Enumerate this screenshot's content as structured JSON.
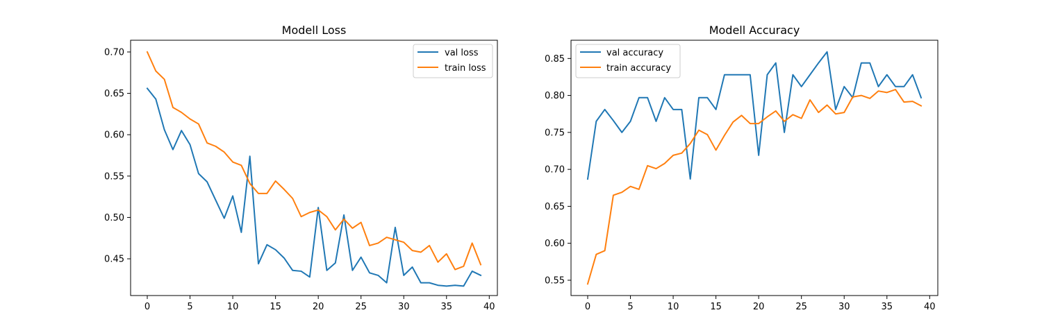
{
  "chart_data": [
    {
      "type": "line",
      "title": "Modell Loss",
      "xlabel": "",
      "ylabel": "",
      "xlim": [
        -1.95,
        40.95
      ],
      "ylim": [
        0.4056,
        0.7142
      ],
      "xticks": [
        0,
        5,
        10,
        15,
        20,
        25,
        30,
        35,
        40
      ],
      "yticks": [
        0.45,
        0.5,
        0.55,
        0.6,
        0.65,
        0.7
      ],
      "ytick_labels": [
        "0.45",
        "0.50",
        "0.55",
        "0.60",
        "0.65",
        "0.70"
      ],
      "legend_position": "upper-right",
      "grid": false,
      "series": [
        {
          "name": "val loss",
          "color": "#1f77b4",
          "x": [
            0,
            1,
            2,
            3,
            4,
            5,
            6,
            7,
            8,
            9,
            10,
            11,
            12,
            13,
            14,
            15,
            16,
            17,
            18,
            19,
            20,
            21,
            22,
            23,
            24,
            25,
            26,
            27,
            28,
            29,
            30,
            31,
            32,
            33,
            34,
            35,
            36,
            37,
            38,
            39
          ],
          "values": [
            0.656,
            0.643,
            0.606,
            0.582,
            0.605,
            0.588,
            0.553,
            0.543,
            0.521,
            0.499,
            0.526,
            0.482,
            0.574,
            0.444,
            0.467,
            0.461,
            0.451,
            0.436,
            0.435,
            0.428,
            0.512,
            0.436,
            0.445,
            0.503,
            0.436,
            0.452,
            0.433,
            0.43,
            0.421,
            0.488,
            0.43,
            0.44,
            0.421,
            0.421,
            0.418,
            0.417,
            0.418,
            0.417,
            0.435,
            0.43
          ]
        },
        {
          "name": "train loss",
          "color": "#ff7f0e",
          "x": [
            0,
            1,
            2,
            3,
            4,
            5,
            6,
            7,
            8,
            9,
            10,
            11,
            12,
            13,
            14,
            15,
            16,
            17,
            18,
            19,
            20,
            21,
            22,
            23,
            24,
            25,
            26,
            27,
            28,
            29,
            30,
            31,
            32,
            33,
            34,
            35,
            36,
            37,
            38,
            39
          ],
          "values": [
            0.7,
            0.677,
            0.667,
            0.633,
            0.627,
            0.619,
            0.613,
            0.59,
            0.586,
            0.579,
            0.567,
            0.563,
            0.541,
            0.529,
            0.529,
            0.544,
            0.534,
            0.523,
            0.501,
            0.506,
            0.509,
            0.501,
            0.485,
            0.498,
            0.487,
            0.494,
            0.466,
            0.469,
            0.476,
            0.473,
            0.47,
            0.46,
            0.458,
            0.466,
            0.446,
            0.456,
            0.437,
            0.441,
            0.469,
            0.443
          ]
        }
      ]
    },
    {
      "type": "line",
      "title": "Modell Accuracy",
      "xlabel": "",
      "ylabel": "",
      "xlim": [
        -1.95,
        40.95
      ],
      "ylim": [
        0.5293,
        0.8747
      ],
      "xticks": [
        0,
        5,
        10,
        15,
        20,
        25,
        30,
        35,
        40
      ],
      "yticks": [
        0.55,
        0.6,
        0.65,
        0.7,
        0.75,
        0.8,
        0.85
      ],
      "ytick_labels": [
        "0.55",
        "0.60",
        "0.65",
        "0.70",
        "0.75",
        "0.80",
        "0.85"
      ],
      "legend_position": "upper-left",
      "grid": false,
      "series": [
        {
          "name": "val accuracy",
          "color": "#1f77b4",
          "x": [
            0,
            1,
            2,
            3,
            4,
            5,
            6,
            7,
            8,
            9,
            10,
            11,
            12,
            13,
            14,
            15,
            16,
            17,
            18,
            19,
            20,
            21,
            22,
            23,
            24,
            25,
            26,
            27,
            28,
            29,
            30,
            31,
            32,
            33,
            34,
            35,
            36,
            37,
            38,
            39
          ],
          "values": [
            0.687,
            0.765,
            0.781,
            0.766,
            0.75,
            0.765,
            0.797,
            0.797,
            0.765,
            0.797,
            0.781,
            0.781,
            0.687,
            0.797,
            0.797,
            0.781,
            0.828,
            0.828,
            0.828,
            0.828,
            0.719,
            0.828,
            0.844,
            0.75,
            0.828,
            0.812,
            0.828,
            0.844,
            0.859,
            0.781,
            0.812,
            0.797,
            0.844,
            0.844,
            0.812,
            0.828,
            0.812,
            0.812,
            0.828,
            0.797
          ]
        },
        {
          "name": "train accuracy",
          "color": "#ff7f0e",
          "x": [
            0,
            1,
            2,
            3,
            4,
            5,
            6,
            7,
            8,
            9,
            10,
            11,
            12,
            13,
            14,
            15,
            16,
            17,
            18,
            19,
            20,
            21,
            22,
            23,
            24,
            25,
            26,
            27,
            28,
            29,
            30,
            31,
            32,
            33,
            34,
            35,
            36,
            37,
            38,
            39
          ],
          "values": [
            0.545,
            0.585,
            0.59,
            0.665,
            0.669,
            0.677,
            0.673,
            0.705,
            0.701,
            0.708,
            0.719,
            0.722,
            0.735,
            0.753,
            0.747,
            0.726,
            0.746,
            0.764,
            0.773,
            0.762,
            0.762,
            0.771,
            0.779,
            0.765,
            0.774,
            0.769,
            0.794,
            0.777,
            0.787,
            0.775,
            0.777,
            0.798,
            0.8,
            0.796,
            0.806,
            0.804,
            0.808,
            0.791,
            0.792,
            0.786
          ]
        }
      ]
    }
  ]
}
